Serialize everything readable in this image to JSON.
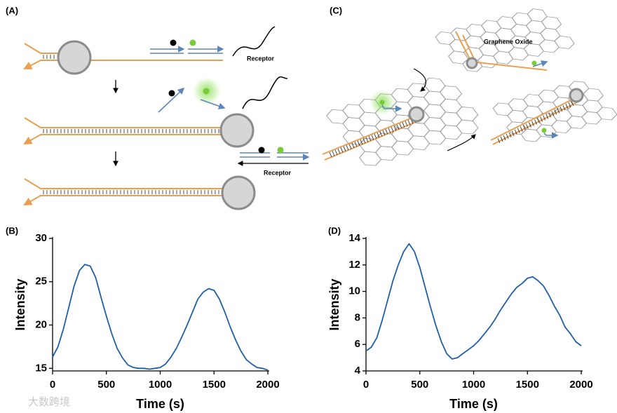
{
  "panels": {
    "a": "(A)",
    "b": "(B)",
    "c": "(C)",
    "d": "(D)"
  },
  "diagram_a": {
    "receptor_top": "Receptor",
    "receptor_bottom": "Receptor"
  },
  "diagram_c": {
    "label": "Graphene Oxide"
  },
  "watermark": "大数跨境",
  "chart_data": [
    {
      "type": "line",
      "xlabel": "Time (s)",
      "ylabel": "Intensity",
      "color": "#1f5fa8",
      "x": [
        0,
        50,
        100,
        150,
        200,
        250,
        300,
        350,
        400,
        450,
        500,
        550,
        600,
        650,
        700,
        750,
        800,
        850,
        900,
        950,
        1000,
        1050,
        1100,
        1150,
        1200,
        1250,
        1300,
        1350,
        1400,
        1450,
        1500,
        1550,
        1600,
        1650,
        1700,
        1750,
        1800,
        1850,
        1900,
        1950,
        2000
      ],
      "values": [
        16.3,
        17.5,
        19.5,
        22,
        24.5,
        26.3,
        27,
        26.8,
        25.5,
        23.2,
        21,
        19,
        17.3,
        16.2,
        15.4,
        15.1,
        15,
        15,
        14.9,
        15,
        15.1,
        15.5,
        16.3,
        17.3,
        18.6,
        20,
        21.5,
        23,
        23.8,
        24.2,
        24,
        23,
        21.5,
        19.8,
        18.3,
        17,
        16,
        15.5,
        15.1,
        15,
        14.8
      ],
      "xlim": [
        0,
        2000
      ],
      "xticks": [
        0,
        500,
        1000,
        1500,
        2000
      ],
      "ylim": [
        14.7,
        30
      ],
      "yticks": [
        15,
        20,
        25,
        30
      ]
    },
    {
      "type": "line",
      "xlabel": "Time (s)",
      "ylabel": "Intensity",
      "color": "#1f5fa8",
      "x": [
        0,
        50,
        100,
        150,
        200,
        250,
        300,
        350,
        400,
        450,
        500,
        550,
        600,
        650,
        700,
        750,
        800,
        850,
        900,
        950,
        1000,
        1050,
        1100,
        1150,
        1200,
        1250,
        1300,
        1350,
        1400,
        1450,
        1500,
        1550,
        1600,
        1650,
        1700,
        1750,
        1800,
        1850,
        1900,
        1950,
        2000
      ],
      "values": [
        5.5,
        5.8,
        6.5,
        7.8,
        9.3,
        10.8,
        12,
        13,
        13.6,
        13,
        11.8,
        10.3,
        8.8,
        7.4,
        6.2,
        5.3,
        4.9,
        5,
        5.3,
        5.6,
        5.9,
        6.3,
        6.8,
        7.3,
        7.9,
        8.6,
        9.2,
        9.8,
        10.3,
        10.6,
        11,
        11.1,
        10.8,
        10.4,
        9.7,
        8.9,
        8.2,
        7.3,
        6.8,
        6.2,
        5.9
      ],
      "xlim": [
        0,
        2000
      ],
      "xticks": [
        0,
        500,
        1000,
        1500,
        2000
      ],
      "ylim": [
        4,
        14
      ],
      "yticks": [
        4,
        6,
        8,
        10,
        12,
        14
      ]
    }
  ]
}
